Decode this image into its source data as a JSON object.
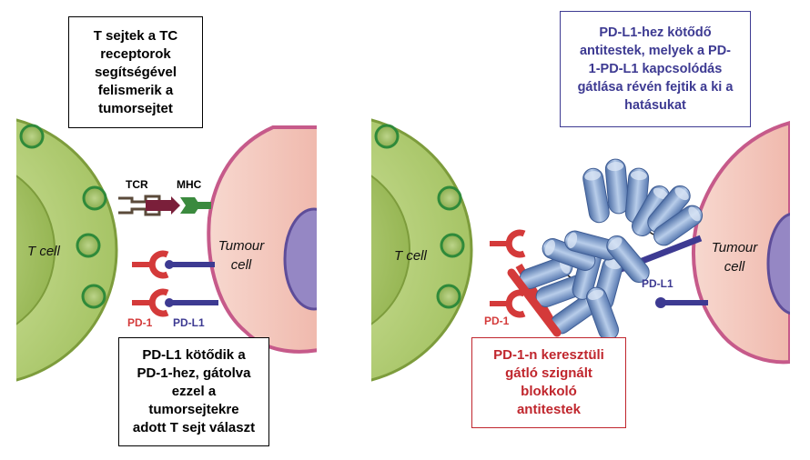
{
  "left_panel": {
    "tcr_box_text": "T sejtek a TC\nreceptorok\nsegítségével\nfelismerik a\ntumorsejtet",
    "pdl1_box_text": "PD-L1 kötődik a\nPD-1-hez, gátolva\nezzel a\ntumorsejtekre\nadott T sejt választ",
    "t_cell_label": "T cell",
    "tumour_label": "Tumour\ncell",
    "tcr_label": "TCR",
    "mhc_label": "MHC",
    "pd1_label": "PD-1",
    "pdl1_label": "PD-L1"
  },
  "right_panel": {
    "antibody_pdl1_box_text": "PD-L1-hez kötődő\nantitestek, melyek  a PD-\n1-PD-L1 kapcsolódás\ngátlása révén  fejtik a ki a\nhatásukat",
    "antibody_pd1_box_text": "PD-1-n keresztüli\ngátló szignált\nblokkoló\nantitestek",
    "t_cell_label": "T cell",
    "tumour_label": "Tumour\ncell",
    "pd1_label": "PD-1",
    "pdl1_label": "PD-L1"
  },
  "colors": {
    "tcell_green": "#b4cf78",
    "tumour_pink": "#f6cfc4",
    "pd1_red": "#d43a3a",
    "pdl1_blue": "#3d3a92",
    "antibody_blue": "#7f9fc9",
    "box_black": "#000000",
    "box_blue": "#3d3a92",
    "box_red": "#c0262d"
  }
}
